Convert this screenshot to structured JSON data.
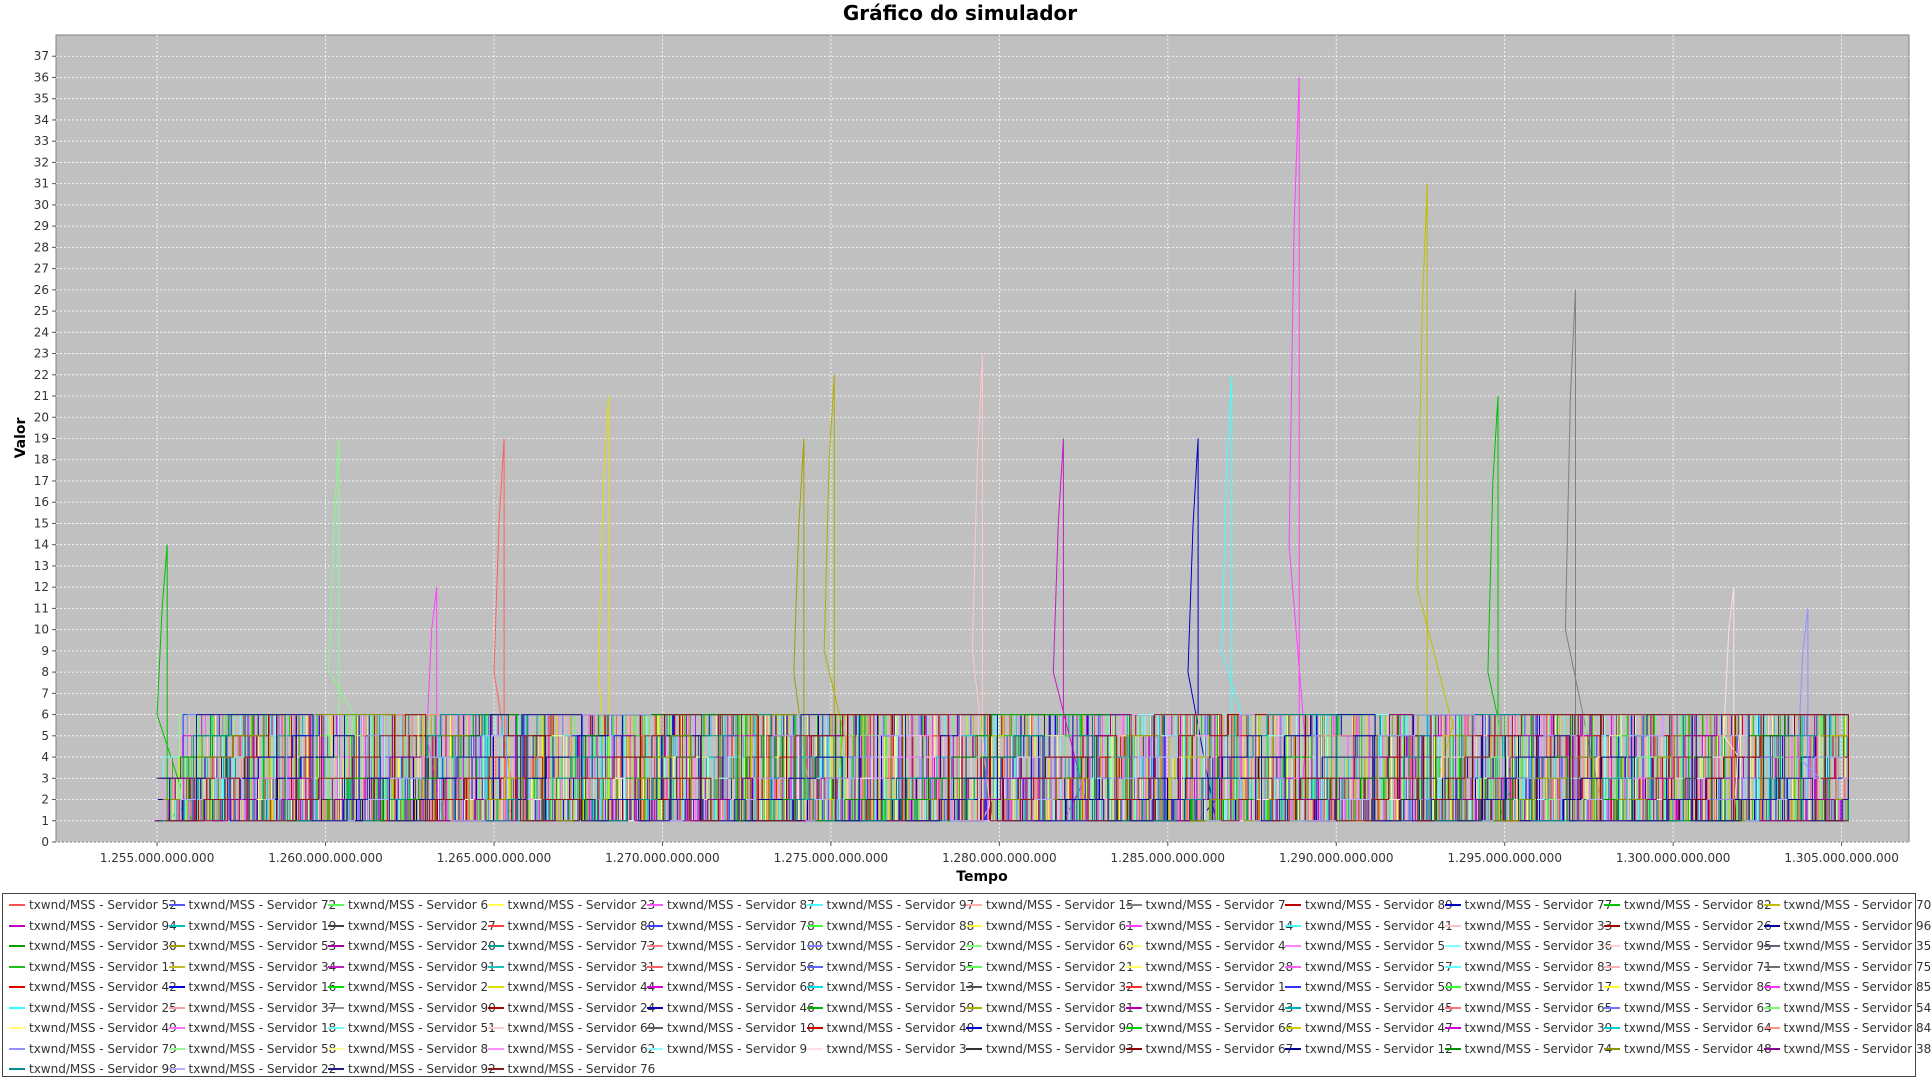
{
  "chart_data": {
    "type": "line",
    "title": "Gráfico do simulador",
    "xlabel": "Tempo",
    "ylabel": "Valor",
    "xlim": [
      1252000000000,
      1307000000000
    ],
    "ylim": [
      0,
      38
    ],
    "x_ticks": [
      1255000000000,
      1260000000000,
      1265000000000,
      1270000000000,
      1275000000000,
      1280000000000,
      1285000000000,
      1290000000000,
      1295000000000,
      1300000000000,
      1305000000000
    ],
    "x_tick_labels": [
      "1.255.000.000.000",
      "1.260.000.000.000",
      "1.265.000.000.000",
      "1.270.000.000.000",
      "1.275.000.000.000",
      "1.280.000.000.000",
      "1.285.000.000.000",
      "1.290.000.000.000",
      "1.295.000.000.000",
      "1.300.000.000.000",
      "1.305.000.000.000"
    ],
    "y_ticks": [
      0,
      1,
      2,
      3,
      4,
      5,
      6,
      7,
      8,
      9,
      10,
      11,
      12,
      13,
      14,
      15,
      16,
      17,
      18,
      19,
      20,
      21,
      22,
      23,
      24,
      25,
      26,
      27,
      28,
      29,
      30,
      31,
      32,
      33,
      34,
      35,
      36,
      37
    ],
    "grid": true,
    "legend_placement": "bottom",
    "plot_background": "#c0c0c0",
    "peaks": [
      {
        "series": "txwnd/MSS - Servidor 82",
        "x": 1255300000000,
        "y": 14
      },
      {
        "series": "txwnd/MSS - Servidor 60",
        "x": 1260400000000,
        "y": 19
      },
      {
        "series": "txwnd/MSS - Servidor 56",
        "x": 1265300000000,
        "y": 19
      },
      {
        "series": "txwnd/MSS - Servidor 14",
        "x": 1263300000000,
        "y": 12
      },
      {
        "series": "txwnd/MSS - Servidor 44",
        "x": 1268400000000,
        "y": 21
      },
      {
        "series": "txwnd/MSS - Servidor 53",
        "x": 1274200000000,
        "y": 19
      },
      {
        "series": "txwnd/MSS - Servidor 81",
        "x": 1275100000000,
        "y": 22
      },
      {
        "series": "txwnd/MSS - Servidor 69",
        "x": 1279500000000,
        "y": 23
      },
      {
        "series": "txwnd/MSS - Servidor 91",
        "x": 1281900000000,
        "y": 19
      },
      {
        "series": "txwnd/MSS - Servidor 77",
        "x": 1285900000000,
        "y": 19
      },
      {
        "series": "txwnd/MSS - Servidor 41",
        "x": 1286900000000,
        "y": 22
      },
      {
        "series": "txwnd/MSS - Servidor 14",
        "x": 1288900000000,
        "y": 36
      },
      {
        "series": "txwnd/MSS - Servidor 70",
        "x": 1292700000000,
        "y": 31
      },
      {
        "series": "txwnd/MSS - Servidor 82",
        "x": 1294800000000,
        "y": 21
      },
      {
        "series": "txwnd/MSS - Servidor 7",
        "x": 1297100000000,
        "y": 26
      },
      {
        "series": "txwnd/MSS - Servidor 3",
        "x": 1301800000000,
        "y": 12
      },
      {
        "series": "txwnd/MSS - Servidor 79",
        "x": 1304000000000,
        "y": 11
      }
    ],
    "baseline_range": [
      1,
      6
    ],
    "series": [
      {
        "name": "txwnd/MSS - Servidor 52",
        "color": "#ff5555"
      },
      {
        "name": "txwnd/MSS - Servidor 72",
        "color": "#5555ff"
      },
      {
        "name": "txwnd/MSS - Servidor 6",
        "color": "#55ff55"
      },
      {
        "name": "txwnd/MSS - Servidor 23",
        "color": "#ffff55"
      },
      {
        "name": "txwnd/MSS - Servidor 87",
        "color": "#ff55ff"
      },
      {
        "name": "txwnd/MSS - Servidor 97",
        "color": "#55ffff"
      },
      {
        "name": "txwnd/MSS - Servidor 15",
        "color": "#ffafaf"
      },
      {
        "name": "txwnd/MSS - Servidor 7",
        "color": "#808080"
      },
      {
        "name": "txwnd/MSS - Servidor 89",
        "color": "#c00000"
      },
      {
        "name": "txwnd/MSS - Servidor 77",
        "color": "#0000c0"
      },
      {
        "name": "txwnd/MSS - Servidor 82",
        "color": "#00c000"
      },
      {
        "name": "txwnd/MSS - Servidor 70",
        "color": "#c0c000"
      },
      {
        "name": "txwnd/MSS - Servidor 94",
        "color": "#c000c0"
      },
      {
        "name": "txwnd/MSS - Servidor 19",
        "color": "#00c0c0"
      },
      {
        "name": "txwnd/MSS - Servidor 27",
        "color": "#404040"
      },
      {
        "name": "txwnd/MSS - Servidor 80",
        "color": "#ff4040"
      },
      {
        "name": "txwnd/MSS - Servidor 78",
        "color": "#4040ff"
      },
      {
        "name": "txwnd/MSS - Servidor 88",
        "color": "#40ff40"
      },
      {
        "name": "txwnd/MSS - Servidor 61",
        "color": "#ffff40"
      },
      {
        "name": "txwnd/MSS - Servidor 14",
        "color": "#ff40ff"
      },
      {
        "name": "txwnd/MSS - Servidor 41",
        "color": "#40ffff"
      },
      {
        "name": "txwnd/MSS - Servidor 33",
        "color": "#ffc0c0"
      },
      {
        "name": "txwnd/MSS - Servidor 26",
        "color": "#a00000"
      },
      {
        "name": "txwnd/MSS - Servidor 96",
        "color": "#0000a0"
      },
      {
        "name": "txwnd/MSS - Servidor 30",
        "color": "#00a000"
      },
      {
        "name": "txwnd/MSS - Servidor 53",
        "color": "#a0a000"
      },
      {
        "name": "txwnd/MSS - Servidor 20",
        "color": "#a000a0"
      },
      {
        "name": "txwnd/MSS - Servidor 73",
        "color": "#00a0a0"
      },
      {
        "name": "txwnd/MSS - Servidor 100",
        "color": "#ff8080"
      },
      {
        "name": "txwnd/MSS - Servidor 29",
        "color": "#8080ff"
      },
      {
        "name": "txwnd/MSS - Servidor 60",
        "color": "#80ff80"
      },
      {
        "name": "txwnd/MSS - Servidor 4",
        "color": "#ffff80"
      },
      {
        "name": "txwnd/MSS - Servidor 5",
        "color": "#ff80ff"
      },
      {
        "name": "txwnd/MSS - Servidor 36",
        "color": "#80ffff"
      },
      {
        "name": "txwnd/MSS - Servidor 95",
        "color": "#ffd0d0"
      },
      {
        "name": "txwnd/MSS - Servidor 35",
        "color": "#606080"
      },
      {
        "name": "txwnd/MSS - Servidor 11",
        "color": "#20c020"
      },
      {
        "name": "txwnd/MSS - Servidor 34",
        "color": "#c0c020"
      },
      {
        "name": "txwnd/MSS - Servidor 91",
        "color": "#c020c0"
      },
      {
        "name": "txwnd/MSS - Servidor 31",
        "color": "#20c0c0"
      },
      {
        "name": "txwnd/MSS - Servidor 56",
        "color": "#ff6060"
      },
      {
        "name": "txwnd/MSS - Servidor 55",
        "color": "#6060ff"
      },
      {
        "name": "txwnd/MSS - Servidor 21",
        "color": "#60ff60"
      },
      {
        "name": "txwnd/MSS - Servidor 28",
        "color": "#ffff60"
      },
      {
        "name": "txwnd/MSS - Servidor 57",
        "color": "#ff60ff"
      },
      {
        "name": "txwnd/MSS - Servidor 83",
        "color": "#60ffff"
      },
      {
        "name": "txwnd/MSS - Servidor 71",
        "color": "#ffb0b0"
      },
      {
        "name": "txwnd/MSS - Servidor 75",
        "color": "#707070"
      },
      {
        "name": "txwnd/MSS - Servidor 42",
        "color": "#e00000"
      },
      {
        "name": "txwnd/MSS - Servidor 16",
        "color": "#0000e0"
      },
      {
        "name": "txwnd/MSS - Servidor 2",
        "color": "#00e000"
      },
      {
        "name": "txwnd/MSS - Servidor 44",
        "color": "#e0e000"
      },
      {
        "name": "txwnd/MSS - Servidor 68",
        "color": "#e000e0"
      },
      {
        "name": "txwnd/MSS - Servidor 13",
        "color": "#00e0e0"
      },
      {
        "name": "txwnd/MSS - Servidor 32",
        "color": "#505050"
      },
      {
        "name": "txwnd/MSS - Servidor 1",
        "color": "#ff3030"
      },
      {
        "name": "txwnd/MSS - Servidor 50",
        "color": "#3030ff"
      },
      {
        "name": "txwnd/MSS - Servidor 17",
        "color": "#30ff30"
      },
      {
        "name": "txwnd/MSS - Servidor 86",
        "color": "#ffff30"
      },
      {
        "name": "txwnd/MSS - Servidor 85",
        "color": "#ff30ff"
      },
      {
        "name": "txwnd/MSS - Servidor 25",
        "color": "#30ffff"
      },
      {
        "name": "txwnd/MSS - Servidor 37",
        "color": "#ffa0a0"
      },
      {
        "name": "txwnd/MSS - Servidor 90",
        "color": "#909090"
      },
      {
        "name": "txwnd/MSS - Servidor 24",
        "color": "#b00000"
      },
      {
        "name": "txwnd/MSS - Servidor 46",
        "color": "#0000b0"
      },
      {
        "name": "txwnd/MSS - Servidor 59",
        "color": "#00b000"
      },
      {
        "name": "txwnd/MSS - Servidor 81",
        "color": "#b0b000"
      },
      {
        "name": "txwnd/MSS - Servidor 43",
        "color": "#b000b0"
      },
      {
        "name": "txwnd/MSS - Servidor 45",
        "color": "#00b0b0"
      },
      {
        "name": "txwnd/MSS - Servidor 65",
        "color": "#ff7070"
      },
      {
        "name": "txwnd/MSS - Servidor 63",
        "color": "#7070ff"
      },
      {
        "name": "txwnd/MSS - Servidor 54",
        "color": "#70ff70"
      },
      {
        "name": "txwnd/MSS - Servidor 49",
        "color": "#ffff70"
      },
      {
        "name": "txwnd/MSS - Servidor 18",
        "color": "#ff70ff"
      },
      {
        "name": "txwnd/MSS - Servidor 51",
        "color": "#70ffff"
      },
      {
        "name": "txwnd/MSS - Servidor 69",
        "color": "#ffc8c8"
      },
      {
        "name": "txwnd/MSS - Servidor 10",
        "color": "#606060"
      },
      {
        "name": "txwnd/MSS - Servidor 40",
        "color": "#d00000"
      },
      {
        "name": "txwnd/MSS - Servidor 99",
        "color": "#0000d0"
      },
      {
        "name": "txwnd/MSS - Servidor 66",
        "color": "#00d000"
      },
      {
        "name": "txwnd/MSS - Servidor 47",
        "color": "#d0d000"
      },
      {
        "name": "txwnd/MSS - Servidor 39",
        "color": "#d000d0"
      },
      {
        "name": "txwnd/MSS - Servidor 64",
        "color": "#00d0d0"
      },
      {
        "name": "txwnd/MSS - Servidor 84",
        "color": "#ff9090"
      },
      {
        "name": "txwnd/MSS - Servidor 79",
        "color": "#9090ff"
      },
      {
        "name": "txwnd/MSS - Servidor 58",
        "color": "#90ff90"
      },
      {
        "name": "txwnd/MSS - Servidor 8",
        "color": "#ffff90"
      },
      {
        "name": "txwnd/MSS - Servidor 62",
        "color": "#ff90ff"
      },
      {
        "name": "txwnd/MSS - Servidor 9",
        "color": "#90ffff"
      },
      {
        "name": "txwnd/MSS - Servidor 3",
        "color": "#ffe0e0"
      },
      {
        "name": "txwnd/MSS - Servidor 93",
        "color": "#303030"
      },
      {
        "name": "txwnd/MSS - Servidor 67",
        "color": "#900000"
      },
      {
        "name": "txwnd/MSS - Servidor 12",
        "color": "#000090"
      },
      {
        "name": "txwnd/MSS - Servidor 74",
        "color": "#009000"
      },
      {
        "name": "txwnd/MSS - Servidor 48",
        "color": "#909000"
      },
      {
        "name": "txwnd/MSS - Servidor 38",
        "color": "#900090"
      },
      {
        "name": "txwnd/MSS - Servidor 98",
        "color": "#009090"
      },
      {
        "name": "txwnd/MSS - Servidor 22",
        "color": "#b0b0ff"
      },
      {
        "name": "txwnd/MSS - Servidor 92",
        "color": "#1c1c8c"
      },
      {
        "name": "txwnd/MSS - Servidor 76",
        "color": "#8c1c1c"
      }
    ]
  }
}
